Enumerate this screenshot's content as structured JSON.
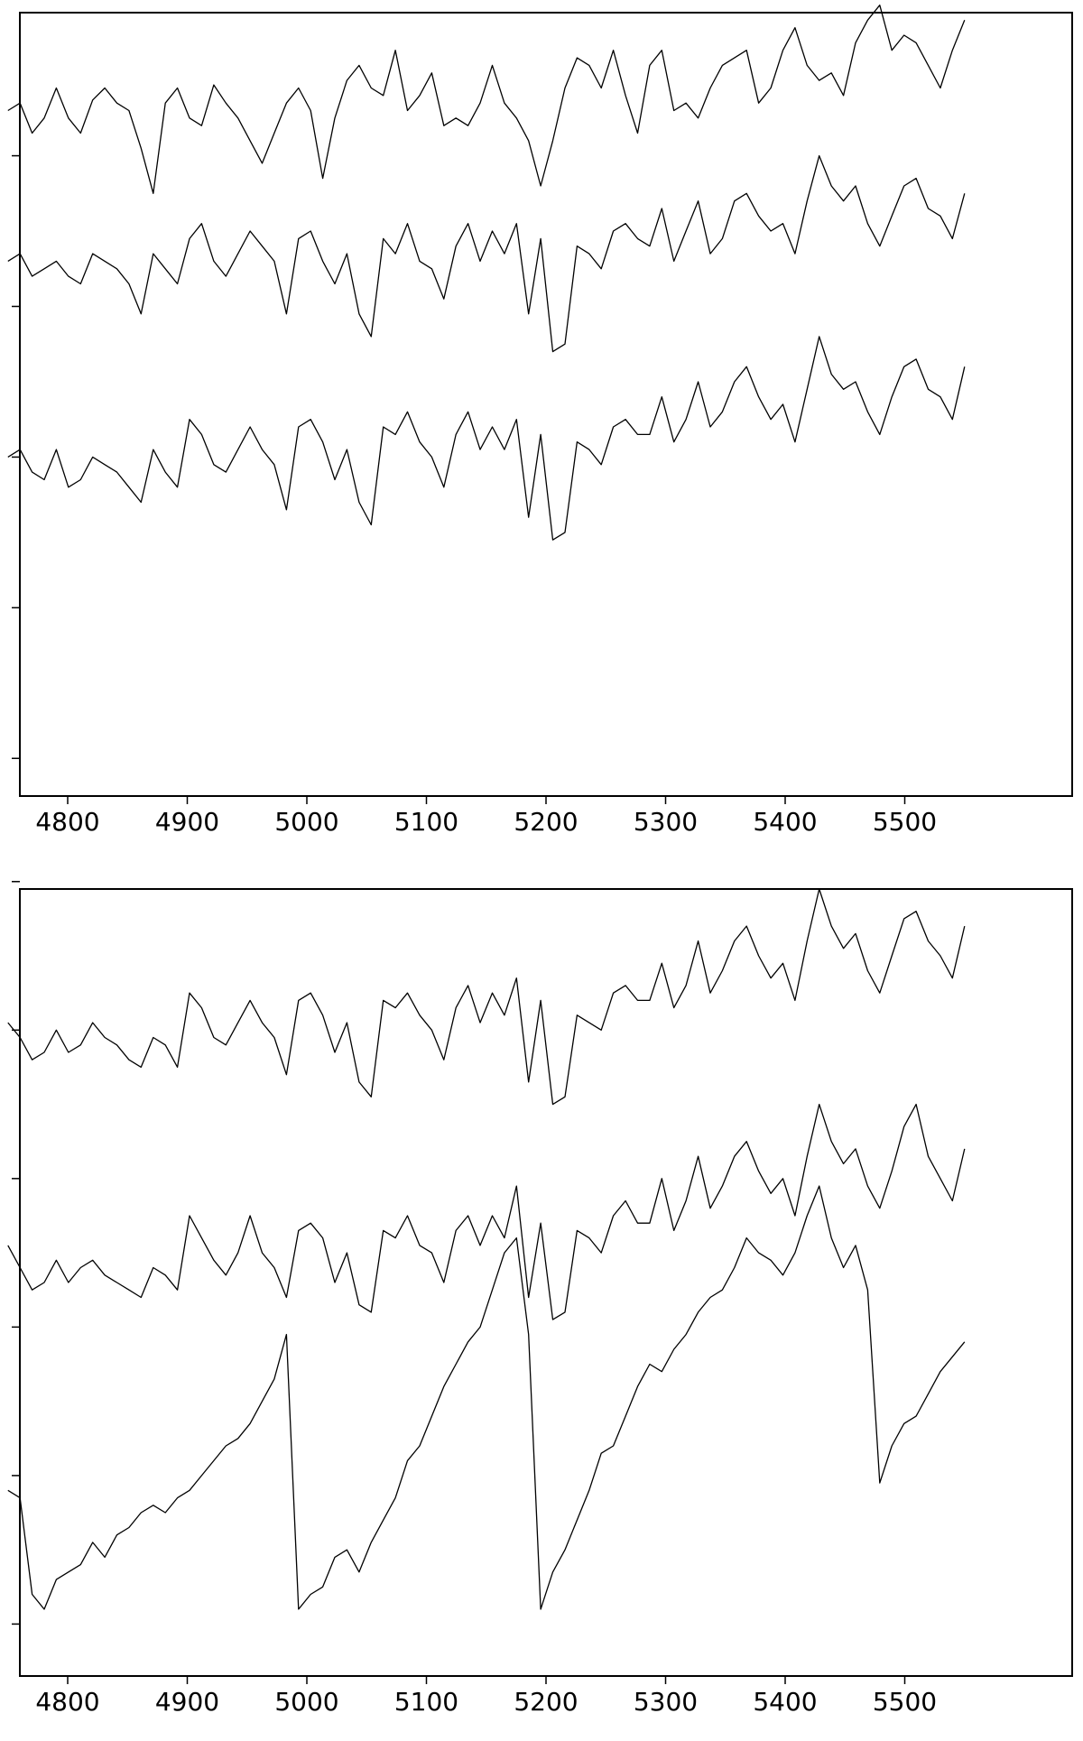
{
  "chart_data": [
    {
      "type": "line",
      "title": "",
      "xlabel": "",
      "ylabel": "",
      "xlim": [
        4760,
        5640
      ],
      "xticks": [
        4800,
        4900,
        5000,
        5100,
        5200,
        5300,
        5400,
        5500
      ],
      "xtick_labels": [
        "4800",
        "4900",
        "5000",
        "5100",
        "5200",
        "5300",
        "5400",
        "5500"
      ],
      "ylim": [
        0,
        5.2
      ],
      "yticks": [
        0.25,
        1.25,
        2.25,
        3.25,
        4.25
      ],
      "ytick_labels": [
        "",
        "",
        "",
        "",
        ""
      ],
      "grid": false,
      "legend": "none",
      "x_range": [
        4750,
        5550
      ],
      "series": [
        {
          "values": [
            4.55,
            4.6,
            4.4,
            4.5,
            4.7,
            4.5,
            4.4,
            4.62,
            4.7,
            4.6,
            4.55,
            4.3,
            4.0,
            4.6,
            4.7,
            4.5,
            4.45,
            4.72,
            4.6,
            4.5,
            4.35,
            4.2,
            4.4,
            4.6,
            4.7,
            4.55,
            4.1,
            4.5,
            4.75,
            4.85,
            4.7,
            4.65,
            4.95,
            4.55,
            4.65,
            4.8,
            4.45,
            4.5,
            4.45,
            4.6,
            4.85,
            4.6,
            4.5,
            4.35,
            4.05,
            4.35,
            4.7,
            4.9,
            4.85,
            4.7,
            4.95,
            4.65,
            4.4,
            4.85,
            4.95,
            4.55,
            4.6,
            4.5,
            4.7,
            4.85,
            4.9,
            4.95,
            4.6,
            4.7,
            4.95,
            5.1,
            4.85,
            4.75,
            4.8,
            4.65,
            5.0,
            5.15,
            5.25,
            4.95,
            5.05,
            5.0,
            4.85,
            4.7,
            4.95,
            5.15
          ]
        },
        {
          "values": [
            3.55,
            3.6,
            3.45,
            3.5,
            3.55,
            3.45,
            3.4,
            3.6,
            3.55,
            3.5,
            3.4,
            3.2,
            3.6,
            3.5,
            3.4,
            3.7,
            3.8,
            3.55,
            3.45,
            3.6,
            3.75,
            3.65,
            3.55,
            3.2,
            3.7,
            3.75,
            3.55,
            3.4,
            3.6,
            3.2,
            3.05,
            3.7,
            3.6,
            3.8,
            3.55,
            3.5,
            3.3,
            3.65,
            3.8,
            3.55,
            3.75,
            3.6,
            3.8,
            3.2,
            3.7,
            2.95,
            3.0,
            3.65,
            3.6,
            3.5,
            3.75,
            3.8,
            3.7,
            3.65,
            3.9,
            3.55,
            3.75,
            3.95,
            3.6,
            3.7,
            3.95,
            4.0,
            3.85,
            3.75,
            3.8,
            3.6,
            3.95,
            4.25,
            4.05,
            3.95,
            4.05,
            3.8,
            3.65,
            3.85,
            4.05,
            4.1,
            3.9,
            3.85,
            3.7,
            4.0
          ]
        },
        {
          "values": [
            2.25,
            2.3,
            2.15,
            2.1,
            2.3,
            2.05,
            2.1,
            2.25,
            2.2,
            2.15,
            2.05,
            1.95,
            2.3,
            2.15,
            2.05,
            2.5,
            2.4,
            2.2,
            2.15,
            2.3,
            2.45,
            2.3,
            2.2,
            1.9,
            2.45,
            2.5,
            2.35,
            2.1,
            2.3,
            1.95,
            1.8,
            2.45,
            2.4,
            2.55,
            2.35,
            2.25,
            2.05,
            2.4,
            2.55,
            2.3,
            2.45,
            2.3,
            2.5,
            1.85,
            2.4,
            1.7,
            1.75,
            2.35,
            2.3,
            2.2,
            2.45,
            2.5,
            2.4,
            2.4,
            2.65,
            2.35,
            2.5,
            2.75,
            2.45,
            2.55,
            2.75,
            2.85,
            2.65,
            2.5,
            2.6,
            2.35,
            2.7,
            3.05,
            2.8,
            2.7,
            2.75,
            2.55,
            2.4,
            2.65,
            2.85,
            2.9,
            2.7,
            2.65,
            2.5,
            2.85
          ]
        }
      ]
    },
    {
      "type": "line",
      "title": "",
      "xlabel": "",
      "ylabel": "",
      "xlim": [
        4760,
        5640
      ],
      "xticks": [
        4800,
        4900,
        5000,
        5100,
        5200,
        5300,
        5400,
        5500
      ],
      "xtick_labels": [
        "4800",
        "4900",
        "5000",
        "5100",
        "5200",
        "5300",
        "5400",
        "5500"
      ],
      "ylim": [
        0,
        5.3
      ],
      "yticks": [
        0.35,
        1.35,
        2.35,
        3.35,
        4.35,
        5.35
      ],
      "ytick_labels": [
        "",
        "",
        "",
        "",
        "",
        ""
      ],
      "grid": false,
      "legend": "none",
      "x_range": [
        4750,
        5550
      ],
      "series": [
        {
          "values": [
            4.4,
            4.3,
            4.15,
            4.2,
            4.35,
            4.2,
            4.25,
            4.4,
            4.3,
            4.25,
            4.15,
            4.1,
            4.3,
            4.25,
            4.1,
            4.6,
            4.5,
            4.3,
            4.25,
            4.4,
            4.55,
            4.4,
            4.3,
            4.05,
            4.55,
            4.6,
            4.45,
            4.2,
            4.4,
            4.0,
            3.9,
            4.55,
            4.5,
            4.6,
            4.45,
            4.35,
            4.15,
            4.5,
            4.65,
            4.4,
            4.6,
            4.45,
            4.7,
            4.0,
            4.55,
            3.85,
            3.9,
            4.45,
            4.4,
            4.35,
            4.6,
            4.65,
            4.55,
            4.55,
            4.8,
            4.5,
            4.65,
            4.95,
            4.6,
            4.75,
            4.95,
            5.05,
            4.85,
            4.7,
            4.8,
            4.55,
            4.95,
            5.3,
            5.05,
            4.9,
            5.0,
            4.75,
            4.6,
            4.85,
            5.1,
            5.15,
            4.95,
            4.85,
            4.7,
            5.05
          ]
        },
        {
          "values": [
            2.9,
            2.75,
            2.6,
            2.65,
            2.8,
            2.65,
            2.75,
            2.8,
            2.7,
            2.65,
            2.6,
            2.55,
            2.75,
            2.7,
            2.6,
            3.1,
            2.95,
            2.8,
            2.7,
            2.85,
            3.1,
            2.85,
            2.75,
            2.55,
            3.0,
            3.05,
            2.95,
            2.65,
            2.85,
            2.5,
            2.45,
            3.0,
            2.95,
            3.1,
            2.9,
            2.85,
            2.65,
            3.0,
            3.1,
            2.9,
            3.1,
            2.95,
            3.3,
            2.55,
            3.05,
            2.4,
            2.45,
            3.0,
            2.95,
            2.85,
            3.1,
            3.2,
            3.05,
            3.05,
            3.35,
            3.0,
            3.2,
            3.5,
            3.15,
            3.3,
            3.5,
            3.6,
            3.4,
            3.25,
            3.35,
            3.1,
            3.5,
            3.85,
            3.6,
            3.45,
            3.55,
            3.3,
            3.15,
            3.4,
            3.7,
            3.85,
            3.5,
            3.35,
            3.2,
            3.55
          ]
        },
        {
          "values": [
            1.25,
            1.2,
            0.55,
            0.45,
            0.65,
            0.7,
            0.75,
            0.9,
            0.8,
            0.95,
            1.0,
            1.1,
            1.15,
            1.1,
            1.2,
            1.25,
            1.35,
            1.45,
            1.55,
            1.6,
            1.7,
            1.85,
            2.0,
            2.3,
            0.45,
            0.55,
            0.6,
            0.8,
            0.85,
            0.7,
            0.9,
            1.05,
            1.2,
            1.45,
            1.55,
            1.75,
            1.95,
            2.1,
            2.25,
            2.35,
            2.6,
            2.85,
            2.95,
            2.3,
            0.45,
            0.7,
            0.85,
            1.05,
            1.25,
            1.5,
            1.55,
            1.75,
            1.95,
            2.1,
            2.05,
            2.2,
            2.3,
            2.45,
            2.55,
            2.6,
            2.75,
            2.95,
            2.85,
            2.8,
            2.7,
            2.85,
            3.1,
            3.3,
            2.95,
            2.75,
            2.9,
            2.6,
            1.3,
            1.55,
            1.7,
            1.75,
            1.9,
            2.05,
            2.15,
            2.25
          ]
        }
      ]
    }
  ]
}
